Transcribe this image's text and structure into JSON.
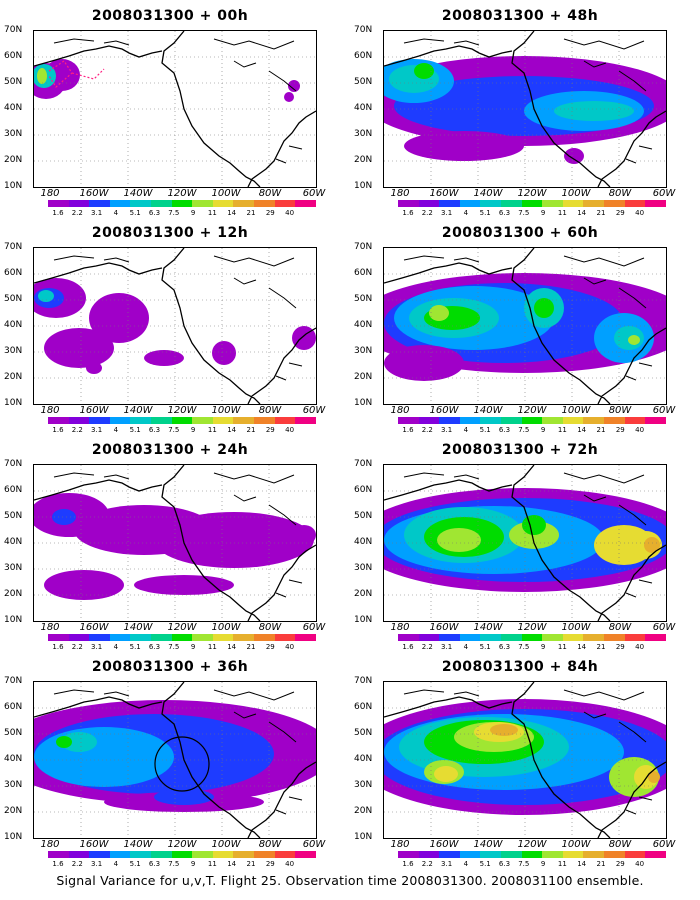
{
  "panels": [
    {
      "title": "2008031300 + 00h"
    },
    {
      "title": "2008031300 + 48h"
    },
    {
      "title": "2008031300 + 12h"
    },
    {
      "title": "2008031300 + 60h"
    },
    {
      "title": "2008031300 + 24h"
    },
    {
      "title": "2008031300 + 72h"
    },
    {
      "title": "2008031300 + 36h"
    },
    {
      "title": "2008031300 + 84h"
    }
  ],
  "y_axis_labels": [
    "70N",
    "60N",
    "50N",
    "40N",
    "30N",
    "20N",
    "10N"
  ],
  "x_axis_labels": [
    "180",
    "160W",
    "140W",
    "120W",
    "100W",
    "80W",
    "60W"
  ],
  "colorbar_labels": [
    "1.6",
    "2.2",
    "3.1",
    "4",
    "5.1",
    "6.3",
    "7.5",
    "9",
    "11",
    "14",
    "21",
    "29",
    "40"
  ],
  "colorbar_colors": [
    "#a000c8",
    "#8200dc",
    "#1e3cff",
    "#00a0ff",
    "#00c8c8",
    "#00d28c",
    "#00dc00",
    "#a0e632",
    "#e6dc32",
    "#e6af2d",
    "#f08228",
    "#fa3c3c",
    "#f00082"
  ],
  "caption": "Signal Variance for u,v,T. Flight 25. Observation time 2008031300. 2008031100 ensemble."
}
